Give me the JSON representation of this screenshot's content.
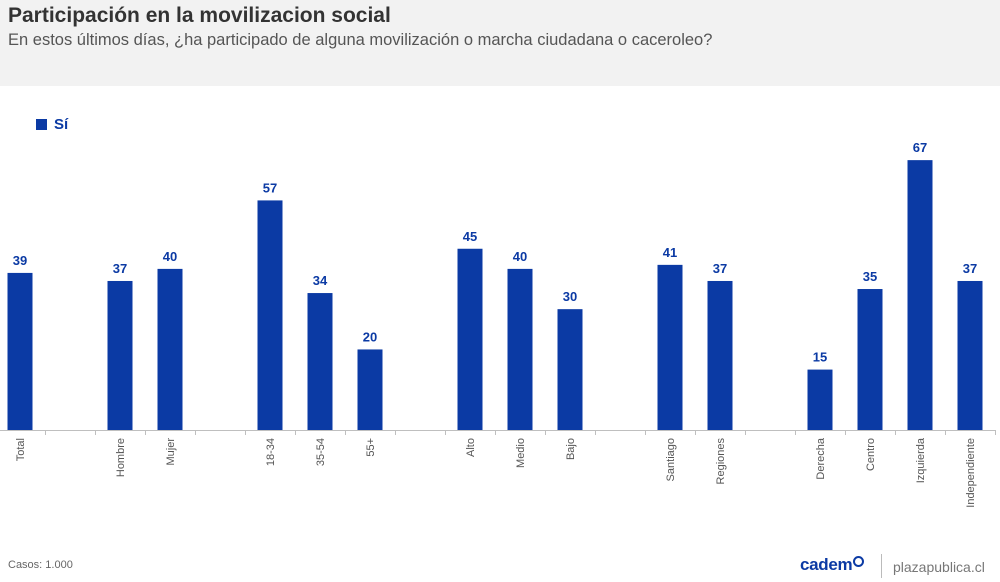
{
  "header": {
    "title": "Participación en la movilizacion social",
    "subtitle": "En estos últimos días, ¿ha participado de alguna movilización o marcha ciudadana o caceroleo?"
  },
  "footer": {
    "cases": "Casos: 1.000",
    "brand": "cadem",
    "site": "plazapublica.cl"
  },
  "colors": {
    "bar": "#0b3aa4",
    "label": "#0b3aa4"
  },
  "chart_data": {
    "type": "bar",
    "categories": [
      "Total",
      "Hombre",
      "Mujer",
      "18-34",
      "35-54",
      "55+",
      "Alto",
      "Medio",
      "Bajo",
      "Santiago",
      "Regiones",
      "Derecha",
      "Centro",
      "Izquierda",
      "Independiente"
    ],
    "groups": [
      [
        "Total"
      ],
      [
        "Hombre",
        "Mujer"
      ],
      [
        "18-34",
        "35-54",
        "55+"
      ],
      [
        "Alto",
        "Medio",
        "Bajo"
      ],
      [
        "Santiago",
        "Regiones"
      ],
      [
        "Derecha",
        "Centro",
        "Izquierda",
        "Independiente"
      ]
    ],
    "series": [
      {
        "name": "Sí",
        "values": [
          39,
          37,
          40,
          57,
          34,
          20,
          45,
          40,
          30,
          41,
          37,
          15,
          35,
          67,
          37
        ]
      }
    ],
    "ylim": [
      0,
      72
    ],
    "grid": false,
    "legend": "top-left",
    "data_labels": true
  }
}
